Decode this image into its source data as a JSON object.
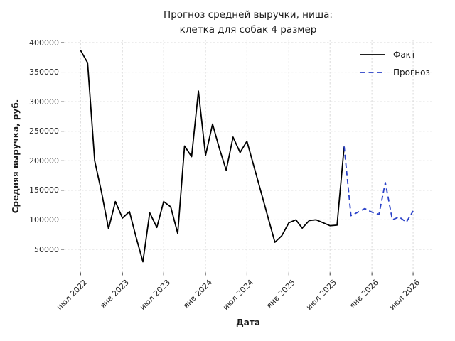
{
  "title": {
    "line1": "Прогноз средней выручки, ниша:",
    "line2": "клетка для собак 4 размер"
  },
  "axes": {
    "x_label": "Дата",
    "y_label": "Средняя выручка, руб.",
    "x_ticks": [
      "июл 2022",
      "янв 2023",
      "июл 2023",
      "янв 2024",
      "июл 2024",
      "янв 2025",
      "июл 2025",
      "янв 2026",
      "июл 2026"
    ],
    "x_tick_dates": [
      "2022-07",
      "2023-01",
      "2023-07",
      "2024-01",
      "2024-07",
      "2025-01",
      "2025-07",
      "2026-01",
      "2026-07"
    ],
    "y_ticks": [
      50000,
      100000,
      150000,
      200000,
      250000,
      300000,
      350000,
      400000
    ]
  },
  "legend": [
    {
      "label": "Факт",
      "color": "#000000",
      "style": "solid"
    },
    {
      "label": "Прогноз",
      "color": "#2a41c8",
      "style": "dashed"
    }
  ],
  "colors": {
    "fact": "#000000",
    "forecast": "#2a41c8",
    "grid": "#d8d8d8",
    "tick": "#262626"
  },
  "chart_data": {
    "type": "line",
    "title": "Прогноз средней выручки, ниша: клетка для собак 4 размер",
    "xlabel": "Дата",
    "ylabel": "Средняя выручка, руб.",
    "ylim": [
      10000,
      405000
    ],
    "grid": true,
    "legend_position": "upper right",
    "series": [
      {
        "name": "Факт",
        "color": "#000000",
        "style": "solid",
        "x": [
          "2022-07",
          "2022-08",
          "2022-09",
          "2022-10",
          "2022-11",
          "2022-12",
          "2023-01",
          "2023-02",
          "2023-03",
          "2023-04",
          "2023-05",
          "2023-06",
          "2023-07",
          "2023-08",
          "2023-09",
          "2023-10",
          "2023-11",
          "2023-12",
          "2024-01",
          "2024-02",
          "2024-03",
          "2024-04",
          "2024-05",
          "2024-06",
          "2024-07",
          "2024-08",
          "2024-09",
          "2024-10",
          "2024-11",
          "2024-12",
          "2025-01",
          "2025-02",
          "2025-03",
          "2025-04",
          "2025-05",
          "2025-06",
          "2025-07",
          "2025-08",
          "2025-09"
        ],
        "values": [
          387000,
          366000,
          200000,
          147000,
          85000,
          131000,
          103000,
          114000,
          72000,
          29000,
          112000,
          87000,
          131000,
          122000,
          77000,
          225000,
          207000,
          318000,
          209000,
          262000,
          222000,
          184000,
          240000,
          214000,
          233000,
          190000,
          147000,
          105000,
          62000,
          73000,
          95000,
          100000,
          86000,
          99000,
          100000,
          95000,
          90000,
          91000,
          224000
        ]
      },
      {
        "name": "Прогноз",
        "color": "#2a41c8",
        "style": "dashed",
        "x": [
          "2025-09",
          "2025-10",
          "2025-11",
          "2025-12",
          "2026-01",
          "2026-02",
          "2026-03",
          "2026-04",
          "2026-05",
          "2026-06",
          "2026-07"
        ],
        "values": [
          224000,
          107000,
          113000,
          119000,
          113000,
          109000,
          163000,
          100000,
          105000,
          96000,
          115000
        ]
      }
    ]
  }
}
